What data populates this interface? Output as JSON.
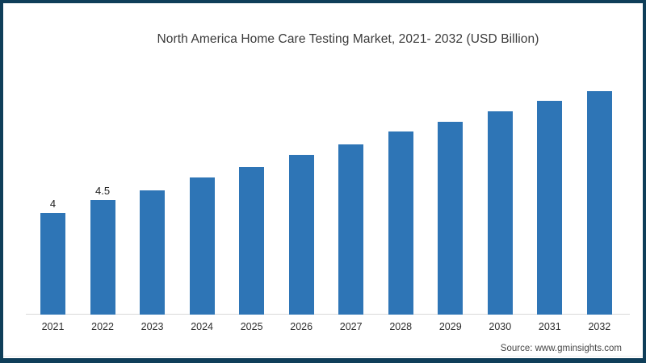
{
  "page": {
    "background_color": "#ffffff",
    "frame_border_color": "#0f3e59"
  },
  "chart_data": {
    "type": "bar",
    "title": "North America Home Care Testing Market, 2021- 2032 (USD Billion)",
    "xlabel": "",
    "ylabel": "",
    "categories": [
      "2021",
      "2022",
      "2023",
      "2024",
      "2025",
      "2026",
      "2027",
      "2028",
      "2029",
      "2030",
      "2031",
      "2032"
    ],
    "values": [
      4,
      4.5,
      4.9,
      5.4,
      5.8,
      6.3,
      6.7,
      7.2,
      7.6,
      8.0,
      8.4,
      8.8
    ],
    "data_labels": [
      "4",
      "4.5",
      "",
      "",
      "",
      "",
      "",
      "",
      "",
      "",
      "",
      ""
    ],
    "ylim": [
      0,
      9
    ],
    "bar_color": "#2e75b6",
    "baseline_color": "#d9d9d9",
    "grid": false,
    "legend": false
  },
  "footer": {
    "source_label": "Source: www.gminsights.com"
  }
}
